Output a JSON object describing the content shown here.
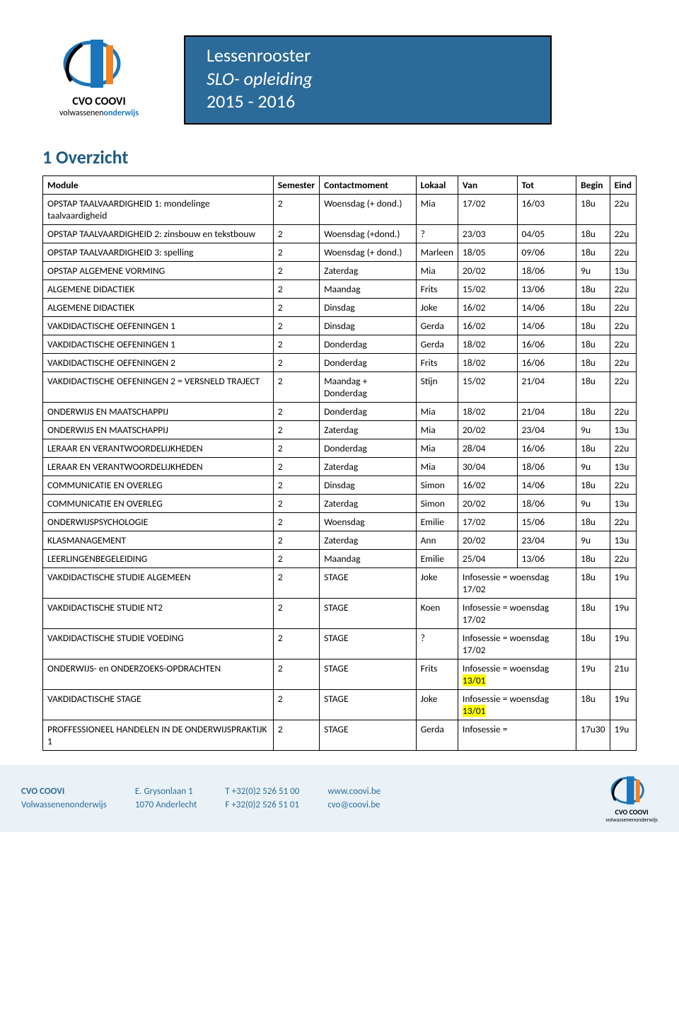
{
  "colors": {
    "banner_bg": "#2c6b99",
    "banner_text": "#ffffff",
    "heading": "#1f5b83",
    "footer_bg": "#eaf2f8",
    "footer_text": "#2c6b99",
    "highlight": "#ffff00",
    "border": "#000000",
    "logo_blue": "#1a75bc",
    "logo_orange": "#f58220"
  },
  "logo": {
    "main": "CVO COOVI",
    "sub_prefix": "volwassenen",
    "sub_suffix": "onderwijs"
  },
  "banner": {
    "line1": "Lessenrooster",
    "line2": "SLO- opleiding",
    "line3": "2015 - 2016"
  },
  "section_title": "1   Overzicht",
  "table": {
    "columns": [
      "Module",
      "Semester",
      "Contactmoment",
      "Lokaal",
      "Van",
      "Tot",
      "Begin",
      "Eind"
    ],
    "rows": [
      {
        "module": "OPSTAP TAALVAARDIGHEID 1: mondelinge taalvaardigheid",
        "sem": "2",
        "contact": "Woensdag (+ dond.)",
        "lokaal": "Mia",
        "van": "17/02",
        "tot": "16/03",
        "begin": "18u",
        "eind": "22u"
      },
      {
        "module": "OPSTAP TAALVAARDIGHEID 2: zinsbouw en tekstbouw",
        "sem": "2",
        "contact": "Woensdag (+dond.)",
        "lokaal": "?",
        "van": "23/03",
        "tot": "04/05",
        "begin": "18u",
        "eind": "22u"
      },
      {
        "module": "OPSTAP TAALVAARDIGHEID 3: spelling",
        "sem": "2",
        "contact": "Woensdag (+ dond.)",
        "lokaal": "Marleen",
        "van": "18/05",
        "tot": "09/06",
        "begin": "18u",
        "eind": "22u"
      },
      {
        "module": "OPSTAP ALGEMENE VORMING",
        "sem": "2",
        "contact": "Zaterdag",
        "lokaal": "Mia",
        "van": "20/02",
        "tot": "18/06",
        "begin": "9u",
        "eind": "13u"
      },
      {
        "module": "ALGEMENE DIDACTIEK",
        "sem": "2",
        "contact": "Maandag",
        "lokaal": "Frits",
        "van": "15/02",
        "tot": "13/06",
        "begin": "18u",
        "eind": "22u"
      },
      {
        "module": "ALGEMENE DIDACTIEK",
        "sem": "2",
        "contact": "Dinsdag",
        "lokaal": "Joke",
        "van": "16/02",
        "tot": "14/06",
        "begin": "18u",
        "eind": "22u"
      },
      {
        "module": "VAKDIDACTISCHE OEFENINGEN 1",
        "sem": "2",
        "contact": "Dinsdag",
        "lokaal": "Gerda",
        "van": "16/02",
        "tot": "14/06",
        "begin": "18u",
        "eind": "22u"
      },
      {
        "module": "VAKDIDACTISCHE OEFENINGEN 1",
        "sem": "2",
        "contact": "Donderdag",
        "lokaal": "Gerda",
        "van": "18/02",
        "tot": "16/06",
        "begin": "18u",
        "eind": "22u"
      },
      {
        "module": "VAKDIDACTISCHE OEFENINGEN 2",
        "sem": "2",
        "contact": "Donderdag",
        "lokaal": "Frits",
        "van": "18/02",
        "tot": "16/06",
        "begin": "18u",
        "eind": "22u"
      },
      {
        "module": "VAKDIDACTISCHE OEFENINGEN 2 = VERSNELD TRAJECT",
        "sem": "2",
        "contact": "Maandag + Donderdag",
        "lokaal": "Stijn",
        "van": "15/02",
        "tot": "21/04",
        "begin": "18u",
        "eind": "22u"
      },
      {
        "module": "ONDERWIJS EN MAATSCHAPPIJ",
        "sem": "2",
        "contact": "Donderdag",
        "lokaal": "Mia",
        "van": "18/02",
        "tot": "21/04",
        "begin": "18u",
        "eind": "22u"
      },
      {
        "module": "ONDERWIJS EN MAATSCHAPPIJ",
        "sem": "2",
        "contact": "Zaterdag",
        "lokaal": "Mia",
        "van": "20/02",
        "tot": "23/04",
        "begin": "9u",
        "eind": "13u"
      },
      {
        "module": "LERAAR EN VERANTWOORDELIJKHEDEN",
        "sem": "2",
        "contact": "Donderdag",
        "lokaal": "Mia",
        "van": "28/04",
        "tot": "16/06",
        "begin": "18u",
        "eind": "22u"
      },
      {
        "module": "LERAAR EN VERANTWOORDELIJKHEDEN",
        "sem": "2",
        "contact": "Zaterdag",
        "lokaal": "Mia",
        "van": "30/04",
        "tot": "18/06",
        "begin": "9u",
        "eind": "13u"
      },
      {
        "module": "COMMUNICATIE EN OVERLEG",
        "sem": "2",
        "contact": "Dinsdag",
        "lokaal": "Simon",
        "van": "16/02",
        "tot": "14/06",
        "begin": "18u",
        "eind": "22u"
      },
      {
        "module": "COMMUNICATIE EN OVERLEG",
        "sem": "2",
        "contact": "Zaterdag",
        "lokaal": "Simon",
        "van": "20/02",
        "tot": "18/06",
        "begin": "9u",
        "eind": "13u"
      },
      {
        "module": "ONDERWIJSPSYCHOLOGIE",
        "sem": "2",
        "contact": "Woensdag",
        "lokaal": "Emilie",
        "van": "17/02",
        "tot": "15/06",
        "begin": "18u",
        "eind": "22u"
      },
      {
        "module": "KLASMANAGEMENT",
        "sem": "2",
        "contact": "Zaterdag",
        "lokaal": "Ann",
        "van": "20/02",
        "tot": "23/04",
        "begin": "9u",
        "eind": "13u"
      },
      {
        "module": "LEERLINGENBEGELEIDING",
        "sem": "2",
        "contact": "Maandag",
        "lokaal": "Emilie",
        "van": "25/04",
        "tot": "13/06",
        "begin": "18u",
        "eind": "22u"
      },
      {
        "module": "VAKDIDACTISCHE STUDIE ALGEMEEN",
        "sem": "2",
        "contact": "STAGE",
        "lokaal": "Joke",
        "van": "Infosessie = woensdag 17/02",
        "tot": "",
        "begin": "18u",
        "eind": "19u",
        "van_span": 2
      },
      {
        "module": "VAKDIDACTISCHE STUDIE NT2",
        "sem": "2",
        "contact": "STAGE",
        "lokaal": "Koen",
        "van": "Infosessie = woensdag 17/02",
        "tot": "",
        "begin": "18u",
        "eind": "19u",
        "van_span": 2
      },
      {
        "module": "VAKDIDACTISCHE STUDIE VOEDING",
        "sem": "2",
        "contact": "STAGE",
        "lokaal": "?",
        "van": "Infosessie = woensdag 17/02",
        "tot": "",
        "begin": "18u",
        "eind": "19u",
        "van_span": 2
      },
      {
        "module": "ONDERWIJS- en ONDERZOEKS-OPDRACHTEN",
        "sem": "2",
        "contact": "STAGE",
        "lokaal": "Frits",
        "van": "Infosessie = woensdag ",
        "van_hl": "13/01",
        "tot": "",
        "begin": "19u",
        "eind": "21u",
        "van_span": 2
      },
      {
        "module": "VAKDIDACTISCHE STAGE",
        "sem": "2",
        "contact": "STAGE",
        "lokaal": "Joke",
        "van": "Infosessie = woensdag ",
        "van_hl": "13/01",
        "tot": "",
        "begin": "18u",
        "eind": "19u",
        "van_span": 2
      },
      {
        "module": "PROFFESSIONEEL HANDELEN IN DE ONDERWIJSPRAKTIJK 1",
        "sem": "2",
        "contact": "STAGE",
        "lokaal": "Gerda",
        "van": "Infosessie =",
        "tot": "",
        "begin": "17u30",
        "eind": "19u",
        "van_span": 2
      }
    ]
  },
  "footer": {
    "org": "CVO COOVI",
    "org_sub": "Volwassenenonderwijs",
    "addr1": "E. Grysonlaan 1",
    "addr2": "1070 Anderlecht",
    "tel": "T +32(0)2 526 51 00",
    "fax": "F +32(0)2 526 51 01",
    "web": "www.coovi.be",
    "mail": "cvo@coovi.be"
  }
}
